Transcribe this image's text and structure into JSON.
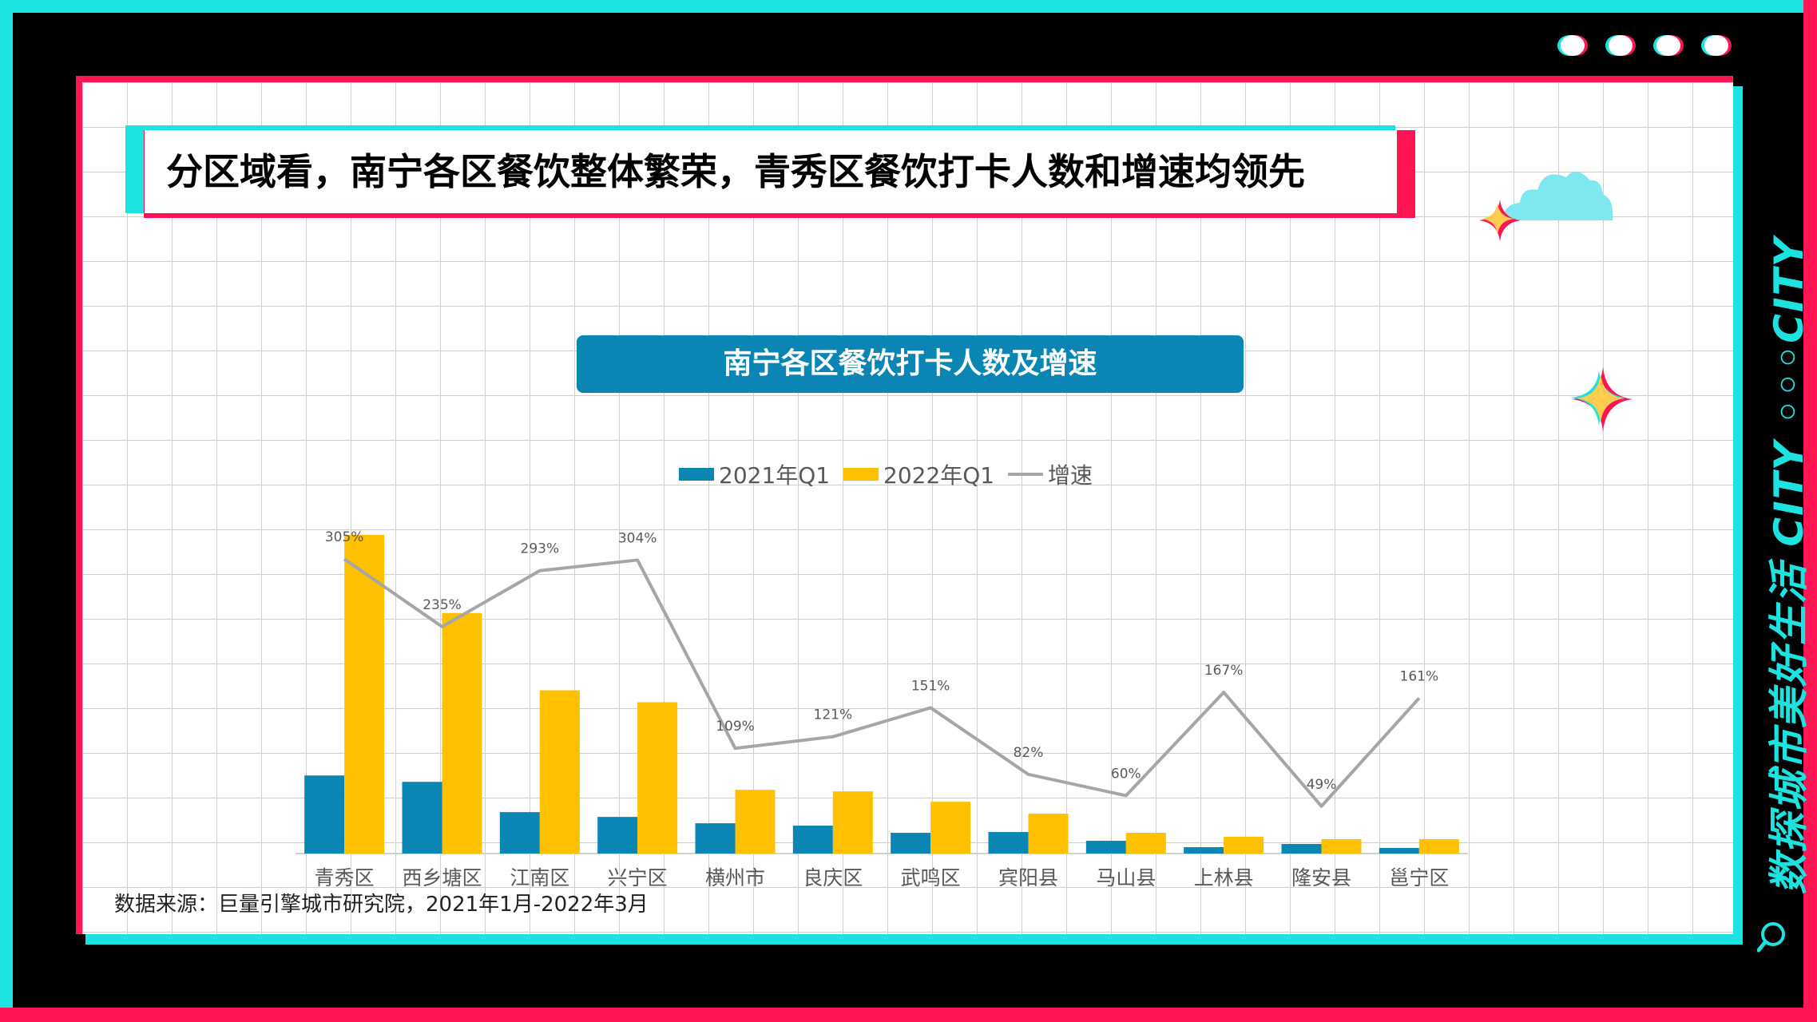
{
  "page": {
    "headline": "分区域看，南宁各区餐饮整体繁荣，青秀区餐饮打卡人数和增速均领先",
    "side_text": "数探城市美好生活 CITY ◦◦◦CITY",
    "source": "数据来源：巨量引擎城市研究院，2021年1月-2022年3月"
  },
  "colors": {
    "cyan": "#1de3e0",
    "red": "#ff1454",
    "bar_2021": "#0b86b4",
    "bar_2022": "#ffc000",
    "line": "#a6a6a6",
    "title_bg": "#0b86b4"
  },
  "chart_data": {
    "type": "bar",
    "title": "南宁各区餐饮打卡人数及增速",
    "categories": [
      "青秀区",
      "西乡塘区",
      "江南区",
      "兴宁区",
      "横州市",
      "良庆区",
      "武鸣区",
      "宾阳县",
      "马山县",
      "上林县",
      "隆安县",
      "邕宁区"
    ],
    "series": [
      {
        "name": "2021年Q1",
        "kind": "bar",
        "values": [
          98,
          90,
          52,
          46,
          38,
          35,
          26,
          27,
          16,
          8,
          12,
          7
        ]
      },
      {
        "name": "2022年Q1",
        "kind": "bar",
        "values": [
          400,
          302,
          205,
          190,
          80,
          78,
          65,
          50,
          26,
          21,
          18,
          18
        ]
      },
      {
        "name": "增速",
        "kind": "line",
        "values": [
          305,
          235,
          293,
          304,
          109,
          121,
          151,
          82,
          60,
          167,
          49,
          161
        ],
        "labels": [
          "305%",
          "235%",
          "293%",
          "304%",
          "109%",
          "121%",
          "151%",
          "82%",
          "60%",
          "167%",
          "49%",
          "161%"
        ]
      }
    ],
    "ylim": [
      0,
      400
    ],
    "y2lim": [
      0,
      330
    ],
    "legend": "top-center",
    "grid": false
  }
}
